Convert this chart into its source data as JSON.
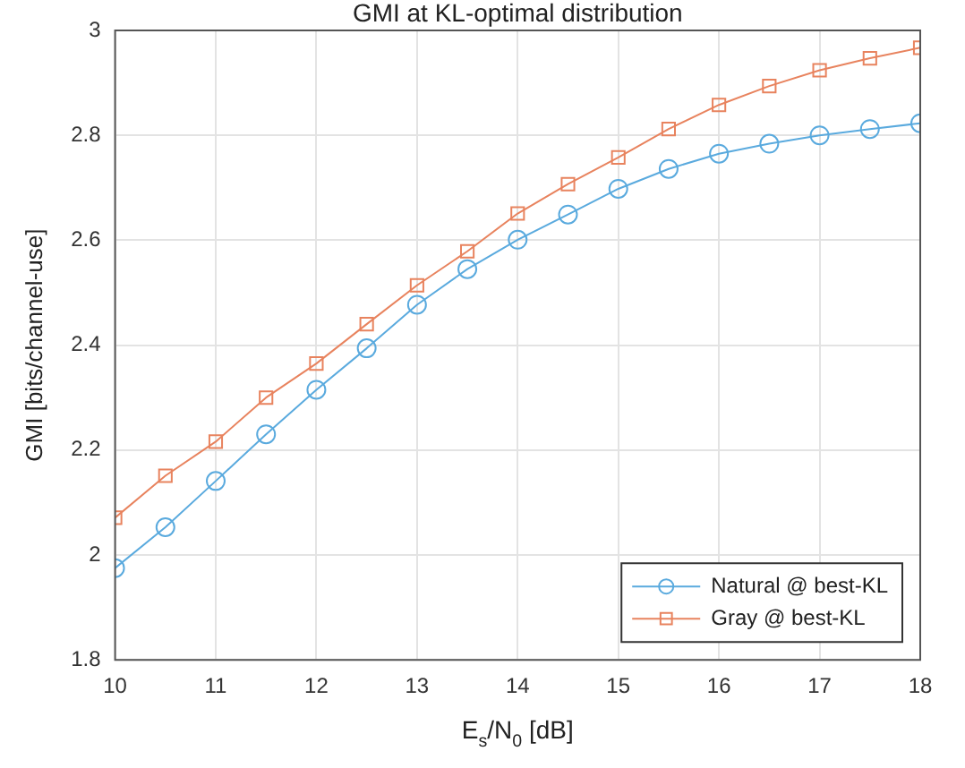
{
  "chart_data": {
    "type": "line",
    "title": "GMI at KL-optimal distribution",
    "xlabel": "E$_{s}$/N$_{0}$ [dB]",
    "ylabel": "GMI [bits/channel-use]",
    "x": [
      10,
      10.5,
      11,
      11.5,
      12,
      12.5,
      13,
      13.5,
      14,
      14.5,
      15,
      15.5,
      16,
      16.5,
      17,
      17.5,
      18
    ],
    "series": [
      {
        "name": "Natural @ best-KL",
        "color": "#5aaade",
        "marker": "circle",
        "values": [
          1.975,
          2.053,
          2.141,
          2.23,
          2.315,
          2.394,
          2.477,
          2.545,
          2.601,
          2.649,
          2.698,
          2.736,
          2.765,
          2.784,
          2.8,
          2.812,
          2.823
        ]
      },
      {
        "name": "Gray @ best-KL",
        "color": "#e8835e",
        "marker": "square",
        "values": [
          2.071,
          2.151,
          2.216,
          2.3,
          2.365,
          2.44,
          2.514,
          2.579,
          2.651,
          2.707,
          2.758,
          2.812,
          2.858,
          2.894,
          2.924,
          2.947,
          2.967
        ]
      }
    ],
    "xlim": [
      10,
      18
    ],
    "xticks": [
      10,
      11,
      12,
      13,
      14,
      15,
      16,
      17,
      18
    ],
    "ylim": [
      1.8,
      3
    ],
    "yticks": [
      1.8,
      2,
      2.2,
      2.4,
      2.6,
      2.8,
      3
    ],
    "grid": true,
    "legend": "bottom right",
    "line_style": "solid"
  }
}
